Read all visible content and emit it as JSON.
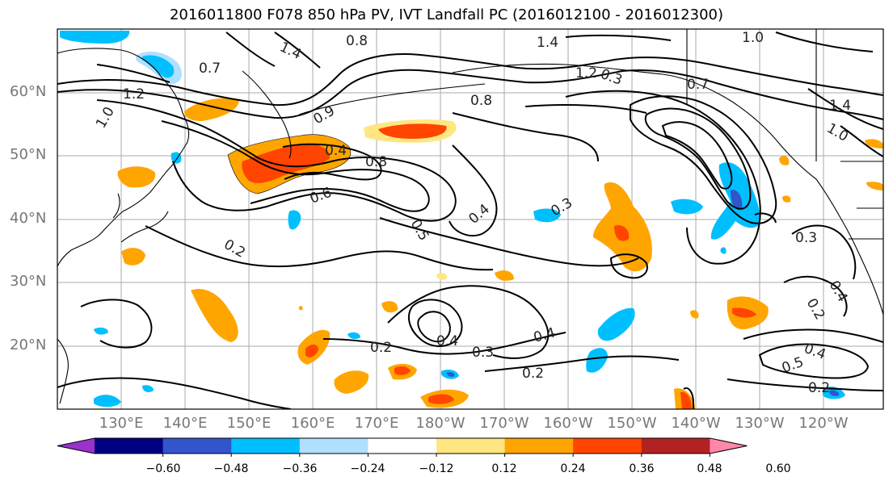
{
  "title": "2016011800 F078 850 hPa PV, IVT Landfall PC (2016012100 - 2016012300)",
  "map": {
    "lat_labels": [
      "60°N",
      "50°N",
      "40°N",
      "30°N",
      "20°N"
    ],
    "lon_labels": [
      "130°E",
      "140°E",
      "150°E",
      "160°E",
      "170°E",
      "180°W",
      "170°W",
      "160°W",
      "150°W",
      "140°W",
      "130°W",
      "120°W"
    ],
    "contour_labels": [
      {
        "text": "1.4"
      },
      {
        "text": "0.8"
      },
      {
        "text": "0.7"
      },
      {
        "text": "1.2"
      },
      {
        "text": "0.9"
      },
      {
        "text": "1.0"
      },
      {
        "text": "0.4"
      },
      {
        "text": "0.8"
      },
      {
        "text": "0.6"
      },
      {
        "text": "0.5"
      },
      {
        "text": "0.4"
      },
      {
        "text": "0.3"
      },
      {
        "text": "0.2"
      },
      {
        "text": "0.2"
      },
      {
        "text": "0.4"
      },
      {
        "text": "0.3"
      },
      {
        "text": "0.4"
      },
      {
        "text": "0.2"
      },
      {
        "text": "1.4"
      },
      {
        "text": "1.2"
      },
      {
        "text": "0.8"
      },
      {
        "text": "0.7"
      },
      {
        "text": "1.0"
      },
      {
        "text": "1.4"
      },
      {
        "text": "1.0"
      },
      {
        "text": "0.3"
      },
      {
        "text": "0.4"
      },
      {
        "text": "0.5"
      },
      {
        "text": "0.2"
      },
      {
        "text": "0.4"
      },
      {
        "text": "0.3"
      },
      {
        "text": "0.2"
      }
    ]
  },
  "colorbar": {
    "colors": [
      "#9933cc",
      "#000080",
      "#3355cc",
      "#00bfff",
      "#b0e0ff",
      "#ffffff",
      "#ffe680",
      "#ffa500",
      "#ff4500",
      "#b22222",
      "#ff88aa"
    ],
    "ticks": [
      "−0.60",
      "−0.48",
      "−0.36",
      "−0.24",
      "−0.12",
      "0.12",
      "0.24",
      "0.36",
      "0.48",
      "0.60"
    ]
  }
}
